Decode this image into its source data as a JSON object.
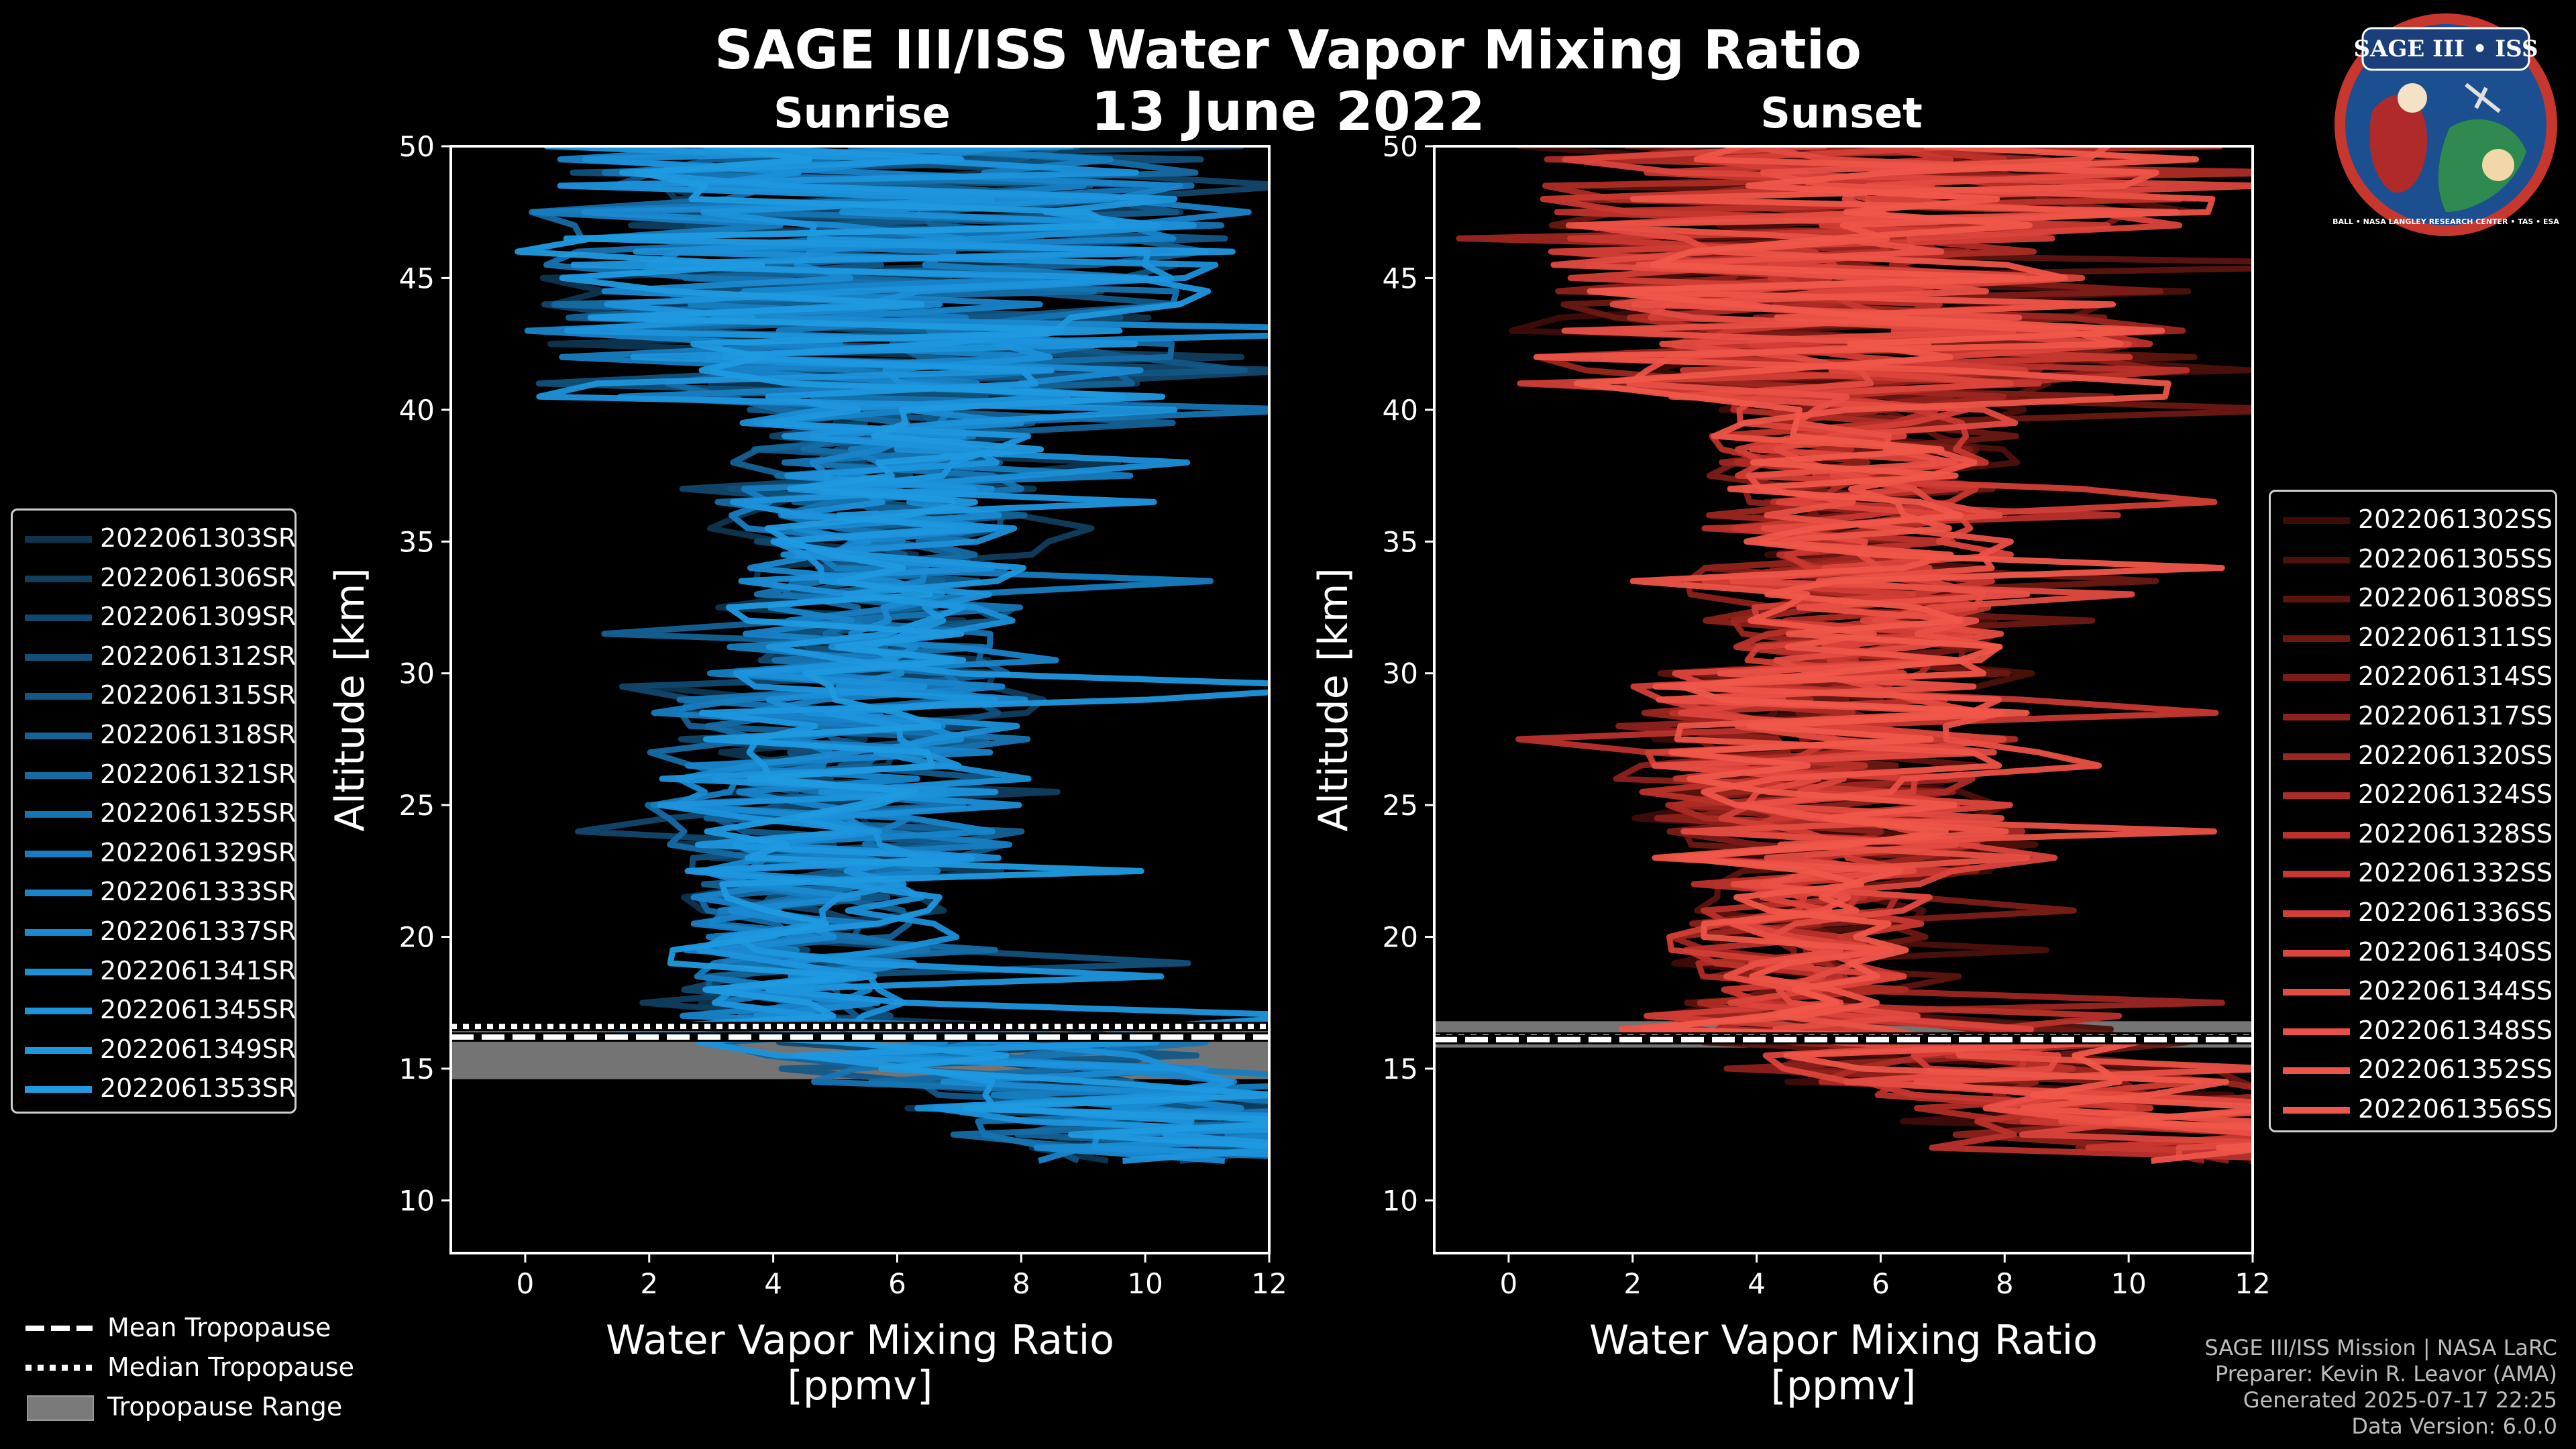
{
  "header": {
    "title": "SAGE III/ISS Water Vapor Mixing Ratio",
    "date": "13 June 2022"
  },
  "logo": {
    "top_text": "SAGE III • ISS",
    "ring_text": "BALL • NASA LANGLEY RESEARCH CENTER • TAS • ESA"
  },
  "colors": {
    "sunrise": "#1f9ae0",
    "sunset": "#f0574a",
    "axis": "#ffffff",
    "range": "#7a7a7a",
    "background": "#000000"
  },
  "chart_data": [
    {
      "type": "line",
      "title": "Sunrise",
      "xlabel": "Water Vapor Mixing Ratio\n[ppmv]",
      "ylabel": "Altitude [km]",
      "xlim": [
        -1.2,
        12
      ],
      "ylim": [
        8,
        50
      ],
      "xticks": [
        0,
        2,
        4,
        6,
        8,
        10,
        12
      ],
      "yticks": [
        10,
        15,
        20,
        25,
        30,
        35,
        40,
        45,
        50
      ],
      "mean_tropopause_km": 16.2,
      "median_tropopause_km": 16.6,
      "tropopause_range_km": [
        14.6,
        16.7
      ],
      "series": [
        {
          "name": "2022061303SR",
          "color": "#0d3550"
        },
        {
          "name": "2022061306SR",
          "color": "#0f3e5e"
        },
        {
          "name": "2022061309SR",
          "color": "#11476c"
        },
        {
          "name": "2022061312SR",
          "color": "#12507a"
        },
        {
          "name": "2022061315SR",
          "color": "#135988"
        },
        {
          "name": "2022061318SR",
          "color": "#146296"
        },
        {
          "name": "2022061321SR",
          "color": "#156ba4"
        },
        {
          "name": "2022061325SR",
          "color": "#1674b2"
        },
        {
          "name": "2022061329SR",
          "color": "#177dc0"
        },
        {
          "name": "2022061333SR",
          "color": "#1884ca"
        },
        {
          "name": "2022061337SR",
          "color": "#1a8ad2"
        },
        {
          "name": "2022061341SR",
          "color": "#1b8fd8"
        },
        {
          "name": "2022061345SR",
          "color": "#1c93dc"
        },
        {
          "name": "2022061349SR",
          "color": "#1d97df"
        },
        {
          "name": "2022061353SR",
          "color": "#1f9ae0"
        }
      ]
    },
    {
      "type": "line",
      "title": "Sunset",
      "xlabel": "Water Vapor Mixing Ratio\n[ppmv]",
      "ylabel": "Altitude [km]",
      "xlim": [
        -1.2,
        12
      ],
      "ylim": [
        8,
        50
      ],
      "xticks": [
        0,
        2,
        4,
        6,
        8,
        10,
        12
      ],
      "yticks": [
        10,
        15,
        20,
        25,
        30,
        35,
        40,
        45,
        50
      ],
      "mean_tropopause_km": 16.1,
      "median_tropopause_km": 16.2,
      "tropopause_range_km": [
        15.8,
        16.8
      ],
      "series": [
        {
          "name": "2022061302SS",
          "color": "#3d0c09"
        },
        {
          "name": "2022061305SS",
          "color": "#4d100c"
        },
        {
          "name": "2022061308SS",
          "color": "#5d140f"
        },
        {
          "name": "2022061311SS",
          "color": "#6d1813"
        },
        {
          "name": "2022061314SS",
          "color": "#7d1c17"
        },
        {
          "name": "2022061317SS",
          "color": "#8d211b"
        },
        {
          "name": "2022061320SS",
          "color": "#9d2620"
        },
        {
          "name": "2022061324SS",
          "color": "#ad2c25"
        },
        {
          "name": "2022061328SS",
          "color": "#bb322a"
        },
        {
          "name": "2022061332SS",
          "color": "#c83830"
        },
        {
          "name": "2022061336SS",
          "color": "#d33e36"
        },
        {
          "name": "2022061340SS",
          "color": "#dc453c"
        },
        {
          "name": "2022061344SS",
          "color": "#e44b41"
        },
        {
          "name": "2022061348SS",
          "color": "#ea5046"
        },
        {
          "name": "2022061352SS",
          "color": "#ee5448"
        },
        {
          "name": "2022061356SS",
          "color": "#f0574a"
        }
      ]
    }
  ],
  "bottom_legend": [
    {
      "label": "Mean Tropopause",
      "style": "dashed"
    },
    {
      "label": "Median Tropopause",
      "style": "dotted"
    },
    {
      "label": "Tropopause Range",
      "style": "patch"
    }
  ],
  "footer": {
    "line1": "SAGE III/ISS Mission | NASA LaRC",
    "line2": "Preparer: Kevin R. Leavor (AMA)",
    "line3": "Generated 2025-07-17 22:25",
    "line4": "Data Version: 6.0.0"
  }
}
